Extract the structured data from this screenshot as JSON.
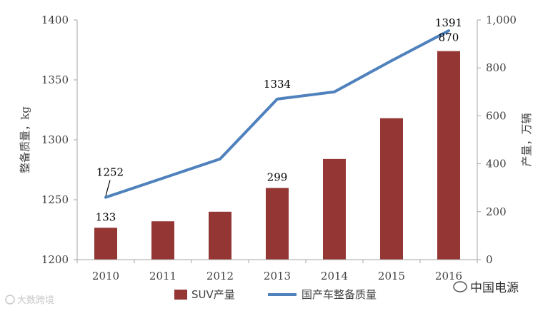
{
  "chart_data": {
    "type": "bar+line",
    "categories": [
      "2010",
      "2011",
      "2012",
      "2013",
      "2014",
      "2015",
      "2016"
    ],
    "y_left": {
      "label": "整备质量，kg",
      "range": [
        1200,
        1400
      ],
      "ticks": [
        "1200",
        "1250",
        "1300",
        "1350",
        "1400"
      ]
    },
    "y_right": {
      "label": "产量，万辆",
      "range": [
        0,
        1000
      ],
      "ticks": [
        "0",
        "200",
        "400",
        "600",
        "800",
        "1,000"
      ]
    },
    "series": [
      {
        "name": "SUV产量",
        "type": "bar",
        "axis": "right",
        "color": "#943634",
        "values": [
          133,
          160,
          200,
          299,
          420,
          590,
          870
        ],
        "labels": [
          "133",
          "",
          "",
          "299",
          "",
          "",
          "870"
        ]
      },
      {
        "name": "国产车整备质量",
        "type": "line",
        "axis": "left",
        "color": "#4f81bd",
        "values": [
          1252,
          1268,
          1284,
          1334,
          1340,
          1366,
          1391
        ],
        "labels": [
          "1252",
          "",
          "",
          "1334",
          "",
          "",
          "1391"
        ]
      }
    ],
    "legend": "bottom",
    "grid": false
  },
  "watermarks": {
    "left": "大数跨境",
    "right": "中国电源"
  }
}
